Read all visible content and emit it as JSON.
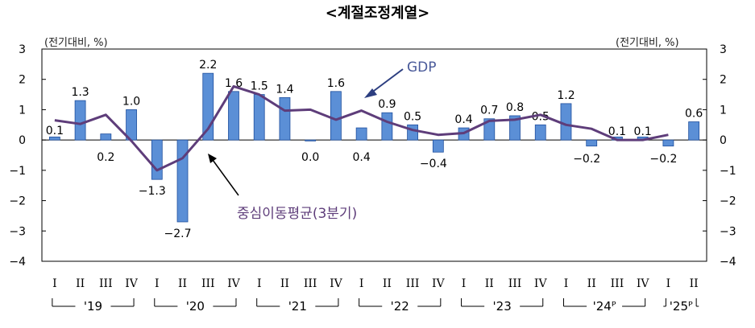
{
  "title": "<계절조정계열>",
  "unit_left": "(전기대비, %)",
  "unit_right": "(전기대비, %)",
  "annotations": {
    "gdp": "GDP",
    "ma": "중심이동평균(3분기)"
  },
  "colors": {
    "bar": "#5b8fd6",
    "bar_edge": "#1f4f9e",
    "line": "#5e3d7a",
    "axis": "#000000"
  },
  "chart_data": {
    "type": "bar",
    "categories": [
      "I",
      "II",
      "III",
      "IV",
      "I",
      "II",
      "III",
      "IV",
      "I",
      "II",
      "III",
      "IV",
      "I",
      "II",
      "III",
      "IV",
      "I",
      "II",
      "III",
      "IV",
      "I",
      "II",
      "III",
      "IV",
      "I",
      "II"
    ],
    "year_groups": [
      {
        "label": "'19",
        "start": 0,
        "end": 3
      },
      {
        "label": "'20",
        "start": 4,
        "end": 7
      },
      {
        "label": "'21",
        "start": 8,
        "end": 11
      },
      {
        "label": "'22",
        "start": 12,
        "end": 15
      },
      {
        "label": "'23",
        "start": 16,
        "end": 19
      },
      {
        "label": "'24ᴾ",
        "start": 20,
        "end": 23
      },
      {
        "label": "'25ᴾ",
        "start": 24,
        "end": 25
      }
    ],
    "series": [
      {
        "name": "GDP",
        "type": "bar",
        "values": [
          0.1,
          1.3,
          0.2,
          1.0,
          -1.3,
          -2.7,
          2.2,
          1.6,
          1.5,
          1.4,
          0.0,
          1.6,
          0.4,
          0.9,
          0.5,
          -0.4,
          0.4,
          0.7,
          0.8,
          0.5,
          1.2,
          -0.2,
          0.1,
          0.1,
          -0.2,
          0.6
        ],
        "labels": [
          "0.1",
          "1.3",
          "0.2",
          "1.0",
          "−1.3",
          "−2.7",
          "2.2",
          "1.6",
          "1.5",
          "1.4",
          "0.0",
          "1.6",
          "0.4",
          "0.9",
          "0.5",
          "−0.4",
          "0.4",
          "0.7",
          "0.8",
          "0.5",
          "1.2",
          "−0.2",
          "0.1",
          "0.1",
          "−0.2",
          "0.6"
        ]
      },
      {
        "name": "중심이동평균(3분기)",
        "type": "line",
        "values": [
          0.65,
          0.53,
          0.83,
          -0.03,
          -1.0,
          -0.6,
          0.37,
          1.77,
          1.5,
          0.97,
          1.0,
          0.67,
          0.97,
          0.6,
          0.33,
          0.17,
          0.23,
          0.63,
          0.67,
          0.83,
          0.5,
          0.37,
          0.0,
          0.0,
          0.17,
          null
        ]
      }
    ],
    "ylim": [
      -4,
      3
    ],
    "yticks": [
      3,
      2,
      1,
      0,
      -1,
      -2,
      -3,
      -4
    ],
    "ytick_labels": [
      "3",
      "2",
      "1",
      "0",
      "−1",
      "−2",
      "−3",
      "−4"
    ],
    "grid": false,
    "legend": "none"
  }
}
